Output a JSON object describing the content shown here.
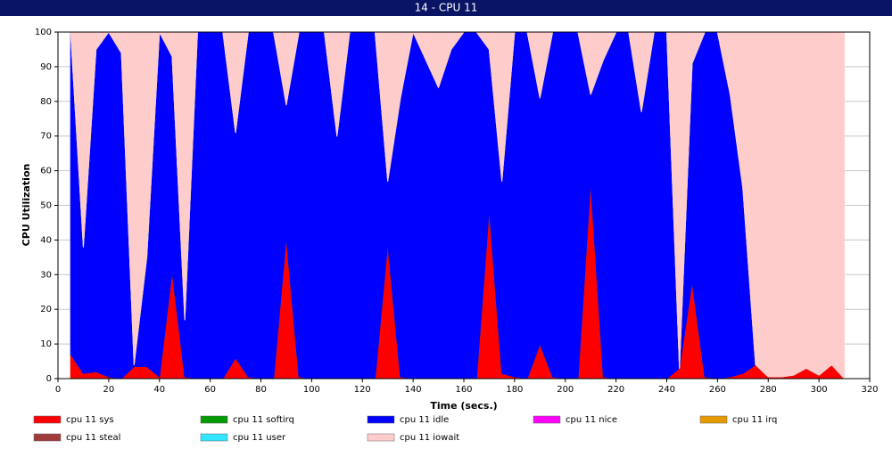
{
  "chart_data": {
    "type": "area",
    "stacked": true,
    "title": "14 - CPU 11",
    "xlabel": "Time (secs.)",
    "ylabel": "CPU Utilization",
    "x": [
      5,
      10,
      15,
      20,
      25,
      30,
      35,
      40,
      45,
      50,
      55,
      60,
      65,
      70,
      75,
      80,
      85,
      90,
      95,
      100,
      105,
      110,
      115,
      120,
      125,
      130,
      135,
      140,
      145,
      150,
      155,
      160,
      165,
      170,
      175,
      180,
      185,
      190,
      195,
      200,
      205,
      210,
      215,
      220,
      225,
      230,
      235,
      240,
      245,
      250,
      255,
      260,
      265,
      270,
      275,
      280,
      285,
      290,
      295,
      300,
      305,
      310
    ],
    "xlim": [
      0,
      320
    ],
    "xticks": [
      0,
      20,
      40,
      60,
      80,
      100,
      120,
      140,
      160,
      180,
      200,
      220,
      240,
      260,
      280,
      300,
      320
    ],
    "ylim": [
      0,
      100
    ],
    "yticks": [
      0,
      10,
      20,
      30,
      40,
      50,
      60,
      70,
      80,
      90,
      100
    ],
    "grid": true,
    "series": [
      {
        "name": "cpu 11 sys",
        "color": "#ff0000",
        "values": [
          7,
          1.5,
          2,
          0.5,
          0,
          3.5,
          3.5,
          0.5,
          31,
          0.5,
          0,
          0,
          0,
          6,
          0.5,
          0,
          0,
          41,
          0.5,
          0,
          0,
          0,
          0,
          0,
          0,
          39,
          0.5,
          0,
          0,
          0,
          0,
          0,
          0,
          49,
          1.5,
          0.5,
          0,
          10,
          0.5,
          0,
          0,
          57,
          0.5,
          0,
          0,
          0,
          0,
          0,
          3,
          28,
          0.5,
          0,
          0.5,
          1.5,
          4,
          0.5,
          0.5,
          1,
          3,
          1,
          4,
          0
        ]
      },
      {
        "name": "cpu 11 softirq",
        "color": "#009900",
        "values": [
          0,
          0,
          0,
          0,
          0,
          0,
          0,
          0,
          0,
          0,
          0,
          0,
          0,
          0,
          0,
          0,
          0,
          0,
          0,
          0,
          0,
          0,
          0,
          0,
          0,
          0,
          0,
          0,
          0,
          0,
          0,
          0,
          0,
          0,
          0,
          0,
          0,
          0,
          0,
          0,
          0,
          0,
          0,
          0,
          0,
          0,
          0,
          0,
          0,
          0,
          0,
          0,
          0,
          0,
          0,
          0,
          0,
          0,
          0,
          0,
          0,
          0
        ]
      },
      {
        "name": "cpu 11 idle",
        "color": "#0000ff",
        "values": [
          93,
          36.5,
          93,
          99.5,
          94,
          0.5,
          31.5,
          99.5,
          62,
          16.5,
          100,
          100,
          100,
          65,
          99.5,
          100,
          100,
          38,
          99.5,
          100,
          100,
          70,
          100,
          100,
          100,
          18,
          80.5,
          100,
          92,
          84,
          95,
          100,
          100,
          46,
          55.5,
          99.5,
          100,
          71,
          99.5,
          100,
          100,
          25,
          91.5,
          100,
          100,
          77,
          100,
          100,
          0,
          63,
          99.5,
          100,
          81.5,
          53.5,
          0,
          0,
          0,
          0,
          0,
          0,
          0,
          0
        ]
      },
      {
        "name": "cpu 11 nice",
        "color": "#ff00ff",
        "values": [
          0,
          0,
          0,
          0,
          0,
          0,
          0,
          0,
          0,
          0,
          0,
          0,
          0,
          0,
          0,
          0,
          0,
          0,
          0,
          0,
          0,
          0,
          0,
          0,
          0,
          0,
          0,
          0,
          0,
          0,
          0,
          0,
          0,
          0,
          0,
          0,
          0,
          0,
          0,
          0,
          0,
          0,
          0,
          0,
          0,
          0,
          0,
          0,
          0,
          0,
          0,
          0,
          0,
          0,
          0,
          0,
          0,
          0,
          0,
          0,
          0,
          0
        ]
      },
      {
        "name": "cpu 11 irq",
        "color": "#e39b00",
        "values": [
          0,
          0,
          0,
          0,
          0,
          0,
          0,
          0,
          0,
          0,
          0,
          0,
          0,
          0,
          0,
          0,
          0,
          0,
          0,
          0,
          0,
          0,
          0,
          0,
          0,
          0,
          0,
          0,
          0,
          0,
          0,
          0,
          0,
          0,
          0,
          0,
          0,
          0,
          0,
          0,
          0,
          0,
          0,
          0,
          0,
          0,
          0,
          0,
          0,
          0,
          0,
          0,
          0,
          0,
          0,
          0,
          0,
          0,
          0,
          0,
          0,
          0
        ]
      },
      {
        "name": "cpu 11 steal",
        "color": "#a03c3c",
        "values": [
          0,
          0,
          0,
          0,
          0,
          0,
          0,
          0,
          0,
          0,
          0,
          0,
          0,
          0,
          0,
          0,
          0,
          0,
          0,
          0,
          0,
          0,
          0,
          0,
          0,
          0,
          0,
          0,
          0,
          0,
          0,
          0,
          0,
          0,
          0,
          0,
          0,
          0,
          0,
          0,
          0,
          0,
          0,
          0,
          0,
          0,
          0,
          0,
          0,
          0,
          0,
          0,
          0,
          0,
          0,
          0,
          0,
          0,
          0,
          0,
          0,
          0
        ]
      },
      {
        "name": "cpu 11 user",
        "color": "#33e6ff",
        "values": [
          0,
          0,
          0,
          0,
          0,
          0,
          0,
          0,
          0,
          0,
          0,
          0,
          0,
          0,
          0,
          0,
          0,
          0,
          0,
          0,
          0,
          0,
          0,
          0,
          0,
          0,
          0,
          0,
          0,
          0,
          0,
          0,
          0,
          0,
          0,
          0,
          0,
          0,
          0,
          0,
          0,
          0,
          0,
          0,
          0,
          0,
          0,
          0,
          0,
          0,
          0,
          0,
          0,
          0,
          0,
          0,
          0,
          0,
          0,
          0,
          0,
          0
        ]
      },
      {
        "name": "cpu 11 iowait",
        "color": "#ffcccc",
        "values": [
          0,
          62,
          5,
          0,
          6,
          96,
          65,
          0,
          7,
          83,
          0,
          0,
          0,
          29,
          0,
          0,
          0,
          21,
          0,
          0,
          0,
          30,
          0,
          0,
          0,
          43,
          19,
          0,
          8,
          16,
          5,
          0,
          0,
          5,
          43,
          0,
          0,
          19,
          0,
          0,
          0,
          18,
          8,
          0,
          0,
          23,
          0,
          0,
          97,
          9,
          0,
          0,
          18,
          45,
          96,
          99.5,
          99.5,
          99,
          97,
          99,
          96,
          100
        ]
      }
    ]
  }
}
